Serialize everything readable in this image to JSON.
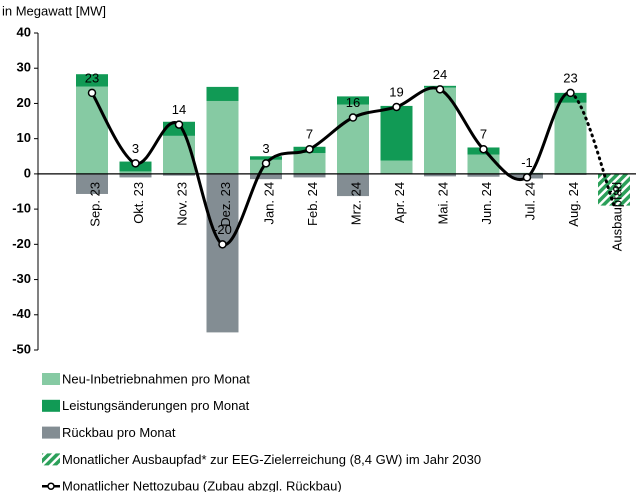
{
  "chart_data": {
    "type": "bar",
    "y_label": "in Megawatt [MW]",
    "categories": [
      "Sep. 23",
      "Okt. 23",
      "Nov. 23",
      "Dez. 23",
      "Jan. 24",
      "Feb. 24",
      "Mrz. 24",
      "Apr. 24",
      "Mai. 24",
      "Jun. 24",
      "Jul. 24",
      "Aug. 24",
      "Ausbaupfad"
    ],
    "series": [
      {
        "name": "Neu-Inbetriebnahmen pro Monat",
        "color": "#86caa3",
        "values": [
          24.8,
          0.7,
          10.8,
          20.7,
          4,
          5.9,
          19.7,
          3.8,
          24.5,
          5.5,
          0.3,
          20.2,
          null
        ]
      },
      {
        "name": "Leistungsänderungen pro Monat",
        "color": "#119a55",
        "values": [
          3.5,
          2.8,
          4,
          4,
          1,
          1.8,
          2.3,
          15.5,
          0.5,
          2,
          0,
          2.8,
          null
        ]
      },
      {
        "name": "Rückbau pro Monat",
        "color": "#838d93",
        "values": [
          -5.7,
          -1,
          -0.5,
          -45,
          -1.5,
          -1,
          -6.3,
          0,
          -0.7,
          -0.8,
          -1.3,
          -0.3,
          null
        ]
      },
      {
        "name": "Monatlicher Ausbaupfad* zur EEG-Zielerreichung (8,4 GW) im Jahr 2030",
        "color": "#2ca05a",
        "hatch": true,
        "values": [
          null,
          null,
          null,
          null,
          null,
          null,
          null,
          null,
          null,
          null,
          null,
          null,
          -9
        ]
      },
      {
        "name": "Monatlicher Nettozubau (Zubau abzgl. Rückbau)",
        "type": "line",
        "color": "#000000",
        "values": [
          23,
          3,
          14,
          -20,
          3,
          7,
          16,
          19,
          24,
          7,
          -1,
          23,
          -9
        ]
      }
    ],
    "ylim": [
      -50,
      40
    ],
    "yticks": [
      -50,
      -40,
      -30,
      -20,
      -10,
      0,
      10,
      20,
      30,
      40
    ],
    "grid": false
  }
}
